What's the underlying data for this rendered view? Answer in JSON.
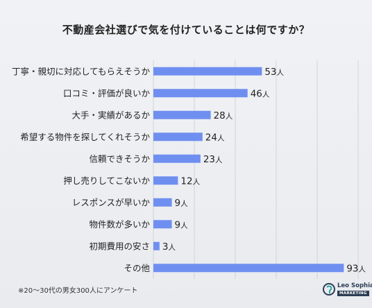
{
  "chart_data": {
    "type": "bar",
    "orientation": "horizontal",
    "title": "不動産会社選びで気を付けていることは何ですか？",
    "categories": [
      "丁寧・親切に対応してもらえそうか",
      "口コミ・評価が良いか",
      "大手・実績があるか",
      "希望する物件を探してくれそうか",
      "信頼できそうか",
      "押し売りしてこないか",
      "レスポンスが早いか",
      "物件数が多いか",
      "初期費用の安さ",
      "その他"
    ],
    "values": [
      53,
      46,
      28,
      24,
      23,
      12,
      9,
      9,
      3,
      93
    ],
    "unit": "人",
    "xlim": [
      0,
      100
    ],
    "grid": true,
    "bar_color": "#6f8ff0",
    "grid_color": "#cfd3da"
  },
  "footnote": "※20～30代の男女300人にアンケート",
  "logo": {
    "name": "Leo Sophia",
    "tag": "MARKETING"
  }
}
